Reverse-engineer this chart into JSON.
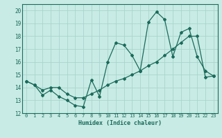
{
  "xlabel": "Humidex (Indice chaleur)",
  "ylabel": "",
  "background_color": "#c8ebe5",
  "grid_color": "#aad4cc",
  "line_color": "#1a6b5a",
  "xlim": [
    -0.5,
    23.5
  ],
  "ylim": [
    12,
    20.5
  ],
  "yticks": [
    12,
    13,
    14,
    15,
    16,
    17,
    18,
    19,
    20
  ],
  "xticks": [
    0,
    1,
    2,
    3,
    4,
    5,
    6,
    7,
    8,
    9,
    10,
    11,
    12,
    13,
    14,
    15,
    16,
    17,
    18,
    19,
    20,
    21,
    22,
    23
  ],
  "series1_x": [
    0,
    1,
    2,
    3,
    4,
    5,
    6,
    7,
    8,
    9,
    10,
    11,
    12,
    13,
    14,
    15,
    16,
    17,
    18,
    19,
    20,
    21,
    22,
    23
  ],
  "series1_y": [
    14.5,
    14.2,
    13.4,
    13.8,
    13.3,
    13.0,
    12.6,
    12.5,
    14.6,
    13.3,
    16.0,
    17.5,
    17.3,
    16.5,
    15.3,
    19.1,
    19.9,
    19.3,
    16.4,
    18.3,
    18.6,
    16.4,
    15.3,
    14.9
  ],
  "series2_x": [
    0,
    1,
    2,
    3,
    4,
    5,
    6,
    7,
    8,
    9,
    10,
    11,
    12,
    13,
    14,
    15,
    16,
    17,
    18,
    19,
    20,
    21,
    22,
    23
  ],
  "series2_y": [
    14.5,
    14.2,
    13.8,
    14.0,
    14.0,
    13.5,
    13.2,
    13.2,
    13.5,
    13.8,
    14.2,
    14.5,
    14.7,
    15.0,
    15.3,
    15.7,
    16.0,
    16.5,
    17.0,
    17.5,
    18.0,
    18.0,
    14.8,
    14.9
  ]
}
